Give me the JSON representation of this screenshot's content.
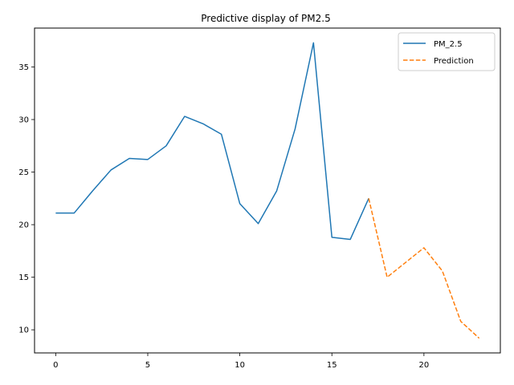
{
  "chart_data": {
    "type": "line",
    "title": "Predictive display of PM2.5",
    "xlabel": "",
    "ylabel": "",
    "xlim": [
      -1.15,
      24.15
    ],
    "ylim": [
      7.8,
      38.7
    ],
    "x_ticks": [
      0,
      5,
      10,
      15,
      20
    ],
    "y_ticks": [
      10,
      15,
      20,
      25,
      30,
      35
    ],
    "grid": false,
    "legend_position": "top-right",
    "series": [
      {
        "name": "PM_2.5",
        "color": "#1f77b4",
        "style": "solid",
        "x": [
          0,
          1,
          2,
          3,
          4,
          5,
          6,
          7,
          8,
          9,
          10,
          11,
          12,
          13,
          14,
          15,
          16,
          17
        ],
        "y": [
          21.1,
          21.1,
          23.2,
          25.2,
          26.3,
          26.2,
          27.5,
          30.3,
          29.6,
          28.6,
          22.0,
          20.1,
          23.2,
          29.1,
          37.3,
          18.8,
          18.6,
          22.5
        ]
      },
      {
        "name": "Prediction",
        "color": "#ff7f0e",
        "style": "dashed",
        "x": [
          17,
          18,
          19,
          20,
          21,
          22,
          23
        ],
        "y": [
          22.5,
          15.0,
          16.4,
          17.8,
          15.6,
          10.8,
          9.2
        ]
      }
    ]
  }
}
